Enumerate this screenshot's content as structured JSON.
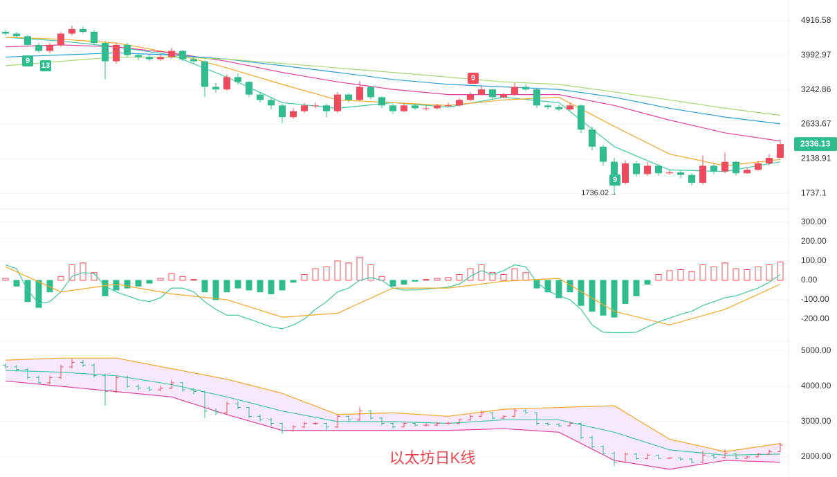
{
  "chart_data": [
    {
      "type": "candlestick",
      "log_scale": true,
      "grid": true,
      "up_color": "#ef4b5a",
      "down_color": "#2fbd8f",
      "ylim": [
        1592,
        5573
      ],
      "yticks": [
        4916.58,
        3992.97,
        3242.86,
        2633.67,
        2138.91,
        1737.1
      ],
      "open": [
        4600,
        4550,
        4480,
        4250,
        4100,
        4250,
        4550,
        4680,
        4600,
        4300,
        3850,
        4250,
        4000,
        3950,
        3900,
        3950,
        4100,
        3900,
        3850,
        3300,
        3250,
        3500,
        3400,
        3150,
        3050,
        2950,
        2750,
        2850,
        2950,
        2950,
        2850,
        3150,
        3050,
        3300,
        3100,
        2950,
        2850,
        2950,
        2900,
        2900,
        2950,
        2950,
        3050,
        3150,
        3250,
        3100,
        3150,
        3300,
        3250,
        2950,
        2920,
        2880,
        2950,
        2550,
        2300,
        2100,
        1850,
        2080,
        1950,
        2050,
        1960,
        1970,
        1940,
        1850,
        2050,
        1980,
        2100,
        1960,
        2000,
        2080,
        2150
      ],
      "high": [
        4650,
        4600,
        4520,
        4300,
        4300,
        4600,
        4780,
        4750,
        4650,
        4350,
        4300,
        4300,
        4050,
        4000,
        4020,
        4180,
        4120,
        3950,
        3880,
        3380,
        3560,
        3580,
        3420,
        3200,
        3100,
        2980,
        2900,
        3000,
        3000,
        2980,
        3200,
        3180,
        3420,
        3320,
        3120,
        2980,
        2990,
        2980,
        2950,
        2980,
        3000,
        3080,
        3200,
        3320,
        3270,
        3180,
        3380,
        3350,
        3270,
        2980,
        2960,
        3000,
        2970,
        2600,
        2330,
        2150,
        2120,
        2110,
        2100,
        2070,
        2000,
        1990,
        1960,
        2180,
        2080,
        2220,
        2110,
        2030,
        2110,
        2200,
        2400
      ],
      "low": [
        4500,
        4420,
        4200,
        4050,
        4050,
        4200,
        4500,
        4550,
        4250,
        3450,
        3800,
        3950,
        3880,
        3850,
        3860,
        3920,
        3850,
        3780,
        3100,
        3180,
        3220,
        3350,
        3100,
        3000,
        2880,
        2650,
        2720,
        2820,
        2900,
        2750,
        2820,
        3000,
        3020,
        3060,
        2900,
        2800,
        2830,
        2870,
        2860,
        2880,
        2920,
        2930,
        3030,
        3130,
        3060,
        3080,
        3130,
        3220,
        2900,
        2880,
        2850,
        2860,
        2500,
        2250,
        2050,
        1736.02,
        1830,
        1920,
        1930,
        1930,
        1940,
        1900,
        1820,
        1830,
        1950,
        1960,
        1930,
        1950,
        1990,
        2060,
        2140
      ],
      "close": [
        4550,
        4480,
        4250,
        4100,
        4250,
        4550,
        4680,
        4600,
        4300,
        3850,
        4250,
        4000,
        3950,
        3900,
        3950,
        4100,
        3900,
        3850,
        3300,
        3250,
        3500,
        3400,
        3150,
        3050,
        2950,
        2750,
        2850,
        2950,
        2950,
        2850,
        3150,
        3050,
        3300,
        3100,
        2950,
        2850,
        2950,
        2900,
        2900,
        2950,
        2950,
        3050,
        3150,
        3250,
        3100,
        3150,
        3300,
        3250,
        2950,
        2920,
        2880,
        2950,
        2550,
        2300,
        2100,
        1850,
        2080,
        1950,
        2050,
        1960,
        1970,
        1940,
        1850,
        2050,
        1980,
        2100,
        1960,
        2000,
        2080,
        2150,
        2336.13
      ],
      "series": [
        {
          "color": "#3cc8a0",
          "x": [
            0,
            5,
            10,
            15,
            20,
            25,
            30,
            35,
            40,
            45,
            50,
            55,
            60,
            65,
            70
          ],
          "values": [
            4450,
            4350,
            4200,
            4000,
            3500,
            3000,
            2900,
            3000,
            2920,
            3100,
            3000,
            2300,
            2000,
            1980,
            2100
          ]
        },
        {
          "color": "#f5a623",
          "x": [
            0,
            5,
            10,
            15,
            20,
            25,
            30,
            35,
            40,
            45,
            50,
            55,
            60,
            65,
            70
          ],
          "values": [
            4450,
            4400,
            4300,
            4050,
            3700,
            3350,
            3050,
            3000,
            2950,
            3050,
            3100,
            2600,
            2200,
            2050,
            2130
          ]
        },
        {
          "color": "#e040a0",
          "x": [
            0,
            5,
            10,
            15,
            20,
            25,
            30,
            35,
            40,
            45,
            50,
            55,
            60,
            65,
            70
          ],
          "values": [
            4200,
            4250,
            4200,
            4050,
            3850,
            3600,
            3400,
            3250,
            3150,
            3150,
            3150,
            2950,
            2700,
            2500,
            2380
          ]
        },
        {
          "color": "#29a0d0",
          "x": [
            0,
            5,
            10,
            15,
            20,
            25,
            30,
            35,
            40,
            45,
            50,
            55,
            60,
            65,
            70
          ],
          "values": [
            3950,
            4000,
            4050,
            4000,
            3900,
            3750,
            3600,
            3450,
            3350,
            3300,
            3250,
            3100,
            2900,
            2750,
            2640
          ]
        },
        {
          "color": "#a5d870",
          "x": [
            0,
            5,
            10,
            15,
            20,
            25,
            30,
            35,
            40,
            45,
            50,
            55,
            60,
            65,
            70
          ],
          "values": [
            3750,
            3850,
            3950,
            3950,
            3900,
            3800,
            3700,
            3600,
            3500,
            3400,
            3350,
            3200,
            3050,
            2900,
            2780
          ]
        }
      ],
      "markers": [
        "9",
        "13",
        "9",
        "9"
      ]
    },
    {
      "type": "macd",
      "grid": true,
      "up_color": "#ef4b5a",
      "down_color": "#2fbd8f",
      "ylim": [
        -304,
        357
      ],
      "yticks": [
        {
          "value": 300,
          "label": "300.00"
        },
        {
          "value": 200,
          "label": "200.00"
        },
        {
          "value": 100,
          "label": "100.00"
        },
        {
          "value": 0,
          "label": "0.00"
        },
        {
          "value": -100,
          "label": "-100.00"
        },
        {
          "value": -200,
          "label": "-200.00"
        }
      ],
      "histogram": [
        10,
        -30,
        -110,
        -140,
        -60,
        20,
        80,
        90,
        40,
        -80,
        -50,
        -40,
        -30,
        -15,
        10,
        35,
        20,
        5,
        -60,
        -100,
        -60,
        -40,
        -50,
        -60,
        -70,
        -50,
        -10,
        30,
        60,
        70,
        100,
        90,
        120,
        80,
        20,
        -30,
        -20,
        -5,
        5,
        10,
        15,
        30,
        60,
        80,
        40,
        30,
        60,
        40,
        -40,
        -60,
        -90,
        -60,
        -130,
        -160,
        -180,
        -190,
        -120,
        -80,
        -20,
        30,
        50,
        55,
        45,
        80,
        70,
        90,
        60,
        55,
        70,
        80,
        95
      ],
      "series": [
        {
          "color": "#3cc8a0",
          "values": [
            80,
            60,
            -50,
            -120,
            -110,
            -60,
            20,
            40,
            35,
            -30,
            -60,
            -80,
            -100,
            -110,
            -90,
            -40,
            -40,
            -60,
            -110,
            -150,
            -180,
            -180,
            -200,
            -220,
            -240,
            -250,
            -230,
            -200,
            -150,
            -110,
            -60,
            -40,
            0,
            15,
            0,
            -40,
            -50,
            -50,
            -45,
            -40,
            -35,
            -20,
            20,
            50,
            30,
            50,
            80,
            70,
            -10,
            -55,
            -80,
            -100,
            -150,
            -230,
            -268,
            -270,
            -270,
            -268,
            -240,
            -215,
            -195,
            -175,
            -160,
            -130,
            -110,
            -90,
            -80,
            -60,
            -40,
            -10,
            30
          ]
        },
        {
          "color": "#f5a623",
          "x": [
            0,
            5,
            10,
            15,
            20,
            25,
            30,
            35,
            40,
            45,
            50,
            55,
            60,
            65,
            70
          ],
          "values": [
            70,
            -60,
            -20,
            -70,
            -100,
            -190,
            -170,
            -40,
            -40,
            -5,
            10,
            -160,
            -230,
            -150,
            -20
          ]
        }
      ]
    },
    {
      "type": "bollinger",
      "grid": true,
      "fill_color": "#f5e2fb",
      "up_color": "#ef4b5a",
      "down_color": "#2fbd8f",
      "ylim": [
        1431,
        5235
      ],
      "yticks": [
        {
          "value": 5000,
          "label": "5000.00"
        },
        {
          "value": 4000,
          "label": "4000.00"
        },
        {
          "value": 3000,
          "label": "3000.00"
        },
        {
          "value": 2000,
          "label": "2000.00"
        }
      ],
      "series": [
        {
          "color": "#f5a623",
          "x": [
            0,
            5,
            10,
            15,
            20,
            25,
            30,
            35,
            40,
            45,
            50,
            55,
            60,
            65,
            70
          ],
          "values": [
            4740,
            4800,
            4800,
            4500,
            4200,
            3800,
            3200,
            3250,
            3150,
            3350,
            3400,
            3450,
            2500,
            2150,
            2380
          ]
        },
        {
          "color": "#3cc8a0",
          "x": [
            0,
            5,
            10,
            15,
            20,
            25,
            30,
            35,
            40,
            45,
            50,
            55,
            60,
            65,
            70
          ],
          "values": [
            4450,
            4400,
            4300,
            4050,
            3700,
            3300,
            3000,
            3000,
            2950,
            3050,
            3050,
            2700,
            2200,
            2050,
            2080
          ]
        },
        {
          "color": "#e040a0",
          "x": [
            0,
            5,
            10,
            15,
            20,
            25,
            30,
            35,
            40,
            45,
            50,
            55,
            60,
            65,
            70
          ],
          "values": [
            4150,
            4000,
            3850,
            3700,
            3200,
            2750,
            2750,
            2750,
            2750,
            2800,
            2700,
            1900,
            1650,
            1900,
            1850
          ]
        }
      ]
    }
  ],
  "watermark": "以太坊日K线"
}
